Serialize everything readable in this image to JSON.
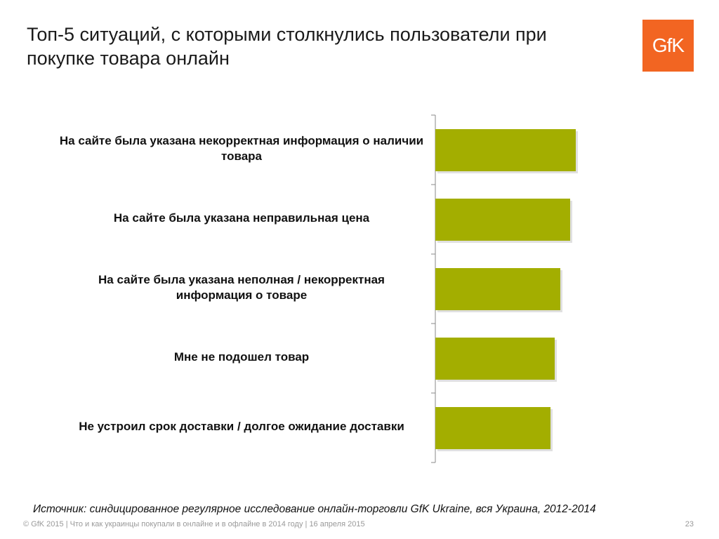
{
  "header": {
    "title": "Топ-5 ситуаций, с которыми столкнулись пользователи при покупке товара онлайн",
    "logo_text": "GfK",
    "logo_color": "#f26522"
  },
  "chart_data": {
    "type": "bar",
    "orientation": "horizontal",
    "title": "",
    "xlabel": "",
    "ylabel": "",
    "categories": [
      "На сайте была указана некорректная информация о наличии товара",
      "На сайте была указана неправильная цена",
      "На сайте была указана неполная / некорректная информация о товаре",
      "Мне не подошел товар",
      "Не устроил срок доставки / долгое ожидание доставки"
    ],
    "values": [
      100,
      96,
      89,
      85,
      82
    ],
    "xlim": [
      0,
      100
    ],
    "bar_color": "#a3ae00",
    "grid": false
  },
  "footer": {
    "source": "Источник: синдицированное регулярное исследование онлайн-торговли GfK Ukraine, вся Украина, 2012-2014",
    "copyright": "© GfK 2015 | Что и как украинцы покупали в онлайне и в офлайне в 2014 году | 16 апреля 2015",
    "page_number": "23"
  }
}
